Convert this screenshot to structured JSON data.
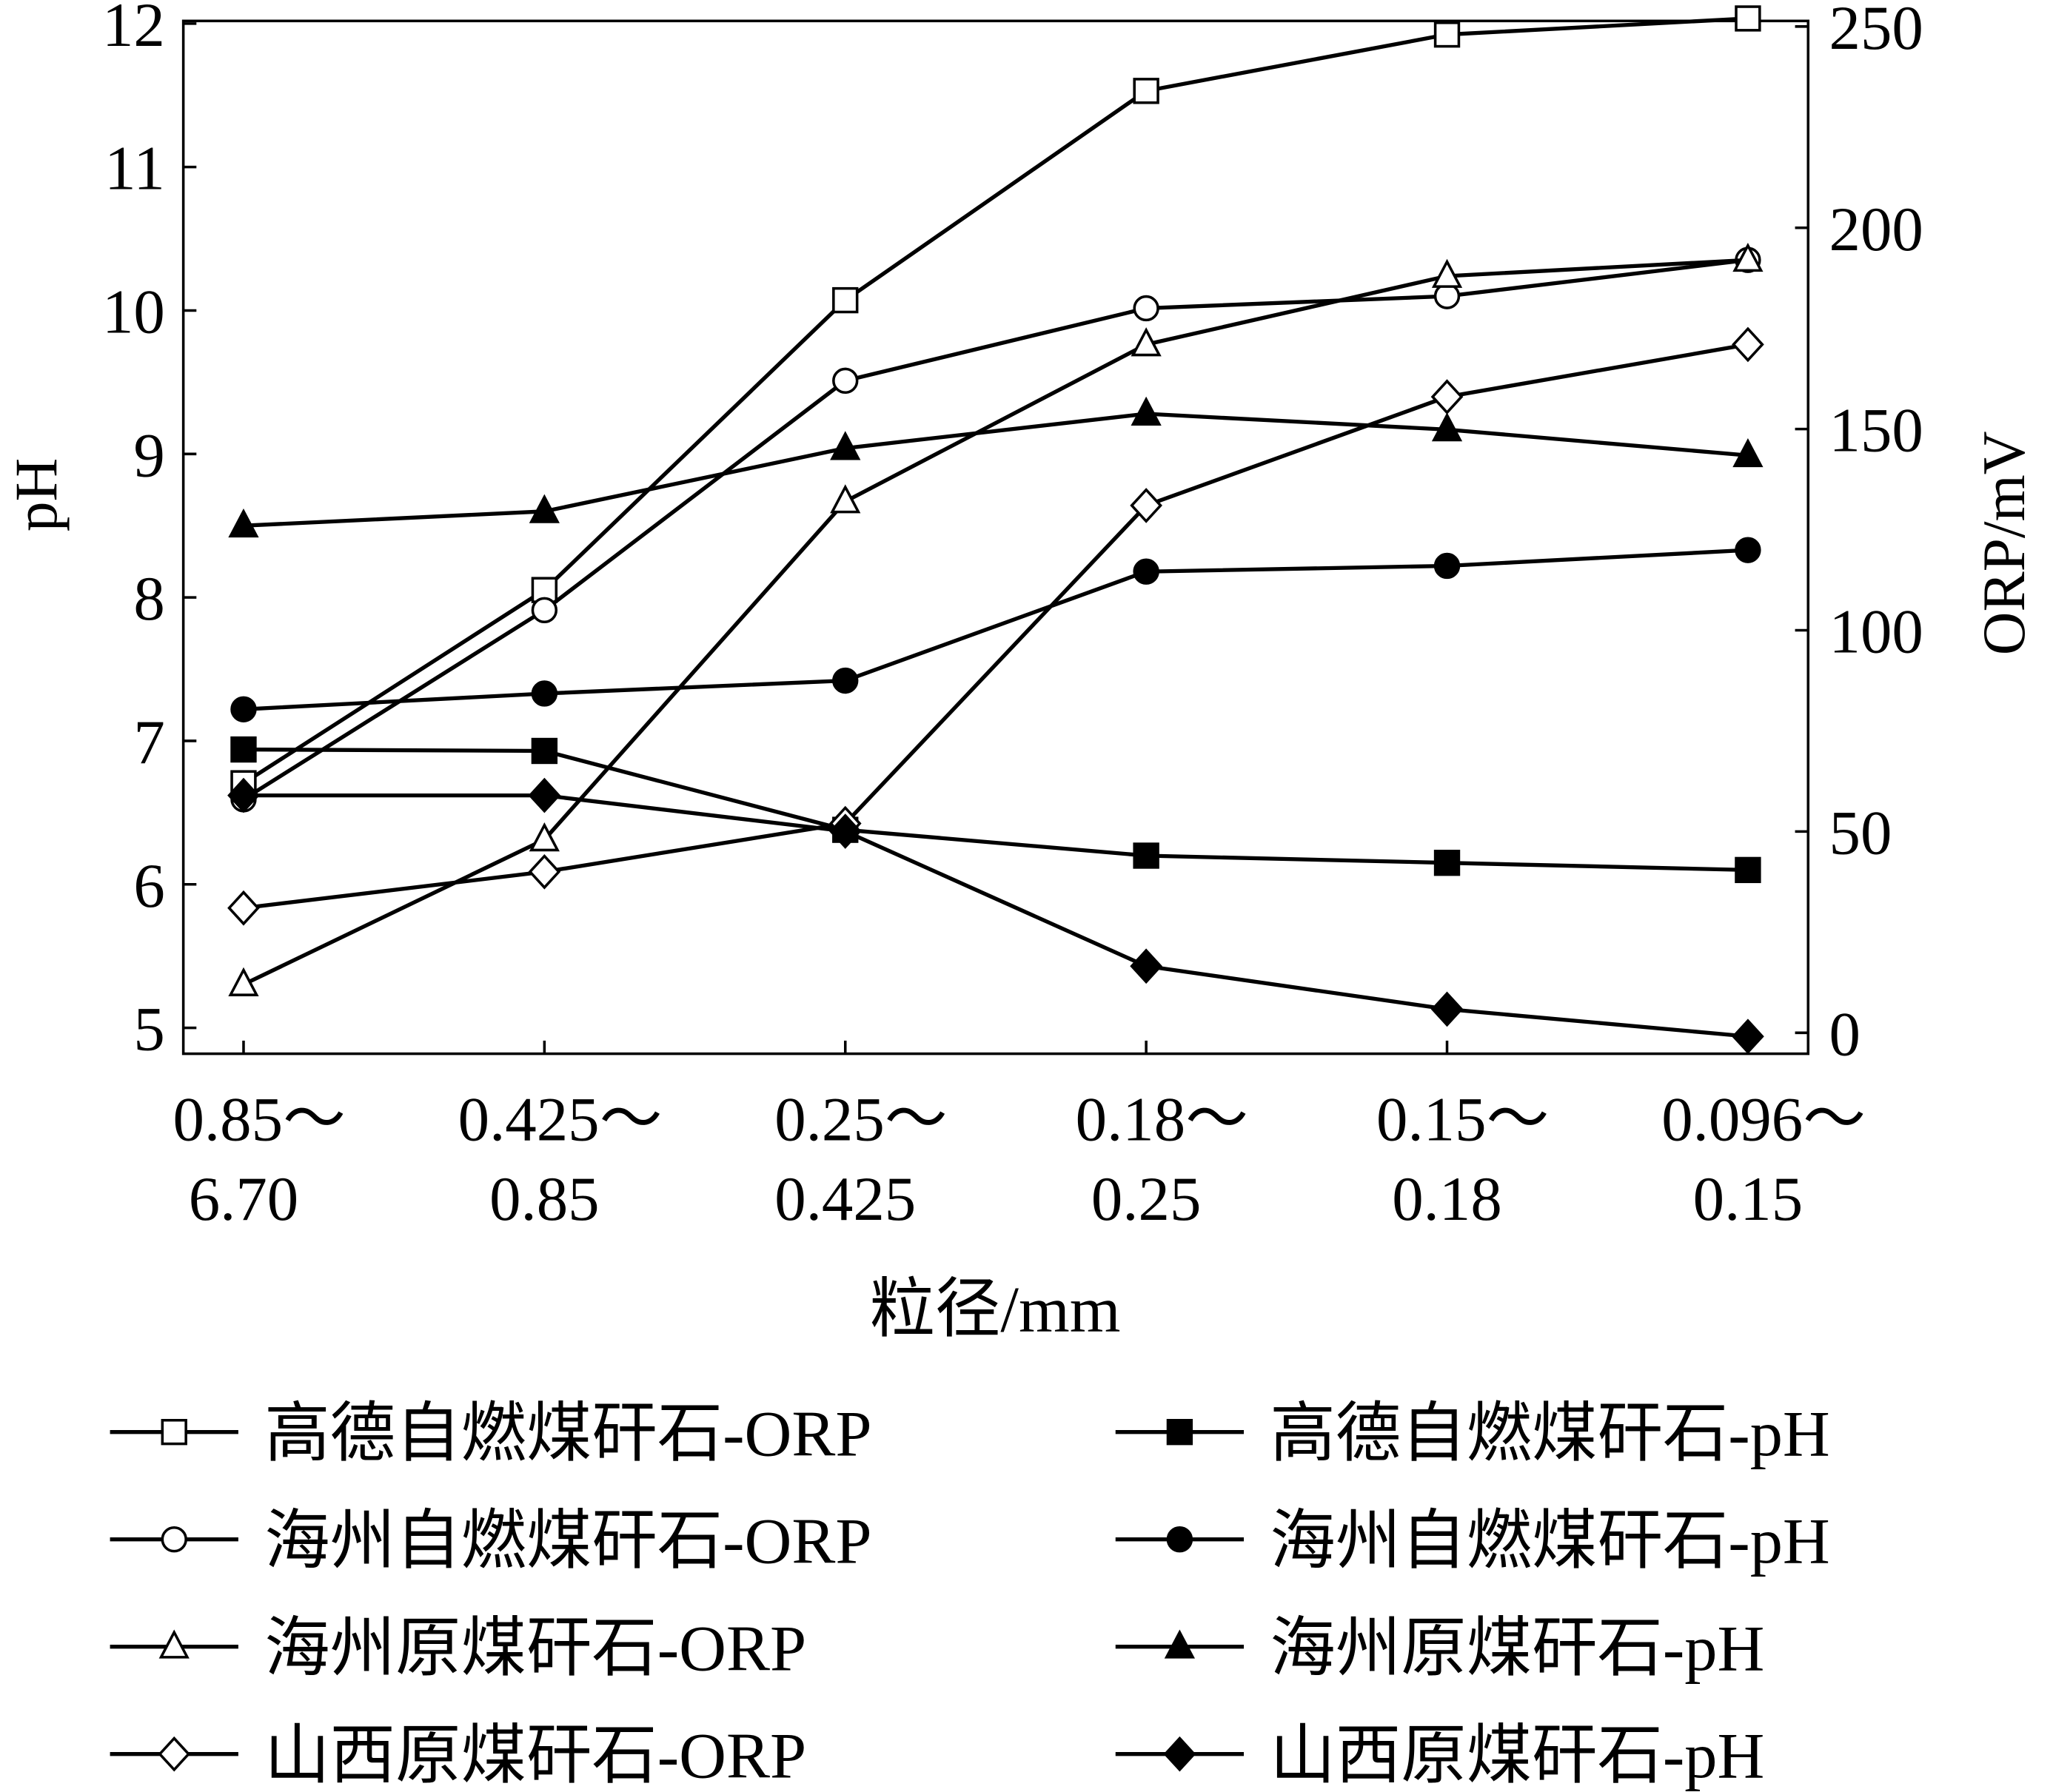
{
  "chart_data": {
    "type": "line",
    "categories": [
      [
        "0.85～",
        "6.70"
      ],
      [
        "0.425～",
        "0.85"
      ],
      [
        "0.25～",
        "0.425"
      ],
      [
        "0.18～",
        "0.25"
      ],
      [
        "0.15～",
        "0.18"
      ],
      [
        "0.096～",
        "0.15"
      ]
    ],
    "xlabel": "粒径/mm",
    "ylabel": "pH",
    "y2label": "ORP/mV",
    "ylim": [
      4.8,
      12.2
    ],
    "y2lim": [
      -5,
      258
    ],
    "yticks": [
      "5",
      "6",
      "7",
      "8",
      "9",
      "10",
      "11",
      "12"
    ],
    "y2ticks": [
      "0",
      "50",
      "100",
      "150",
      "200",
      "250"
    ],
    "legend_position": "bottom",
    "series": [
      {
        "name": "高德自燃煤矸石-ORP",
        "axis": "right",
        "marker": "square-open",
        "values": [
          62,
          110,
          182,
          234,
          248,
          252
        ]
      },
      {
        "name": "高德自燃煤矸石-pH",
        "axis": "left",
        "marker": "square-filled",
        "values": [
          6.94,
          6.93,
          6.38,
          6.2,
          6.15,
          6.1
        ]
      },
      {
        "name": "海州自燃煤矸石-ORP",
        "axis": "right",
        "marker": "circle-open",
        "values": [
          58,
          105,
          162,
          180,
          183,
          192
        ]
      },
      {
        "name": "海州自燃煤矸石-pH",
        "axis": "left",
        "marker": "circle-filled",
        "values": [
          7.22,
          7.33,
          7.42,
          8.18,
          8.22,
          8.33
        ]
      },
      {
        "name": "海州原煤矸石-ORP",
        "axis": "right",
        "marker": "triangle-open",
        "values": [
          12,
          48,
          132,
          171,
          188,
          192
        ]
      },
      {
        "name": "海州原煤矸石-pH",
        "axis": "left",
        "marker": "triangle-filled",
        "values": [
          8.5,
          8.6,
          9.04,
          9.28,
          9.17,
          8.99
        ]
      },
      {
        "name": "山西原煤矸石-ORP",
        "axis": "right",
        "marker": "diamond-open",
        "values": [
          31,
          40,
          52,
          131,
          158,
          171
        ]
      },
      {
        "name": "山西原煤矸石-pH",
        "axis": "left",
        "marker": "diamond-filled",
        "values": [
          6.62,
          6.62,
          6.37,
          5.43,
          5.13,
          4.94
        ]
      }
    ]
  }
}
